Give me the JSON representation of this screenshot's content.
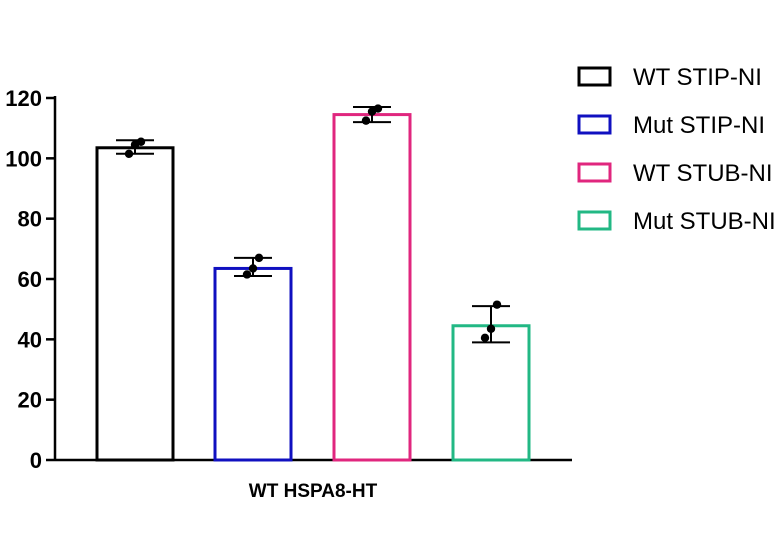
{
  "chart_data": {
    "type": "bar",
    "categories": [
      "WT HSPA8-HT"
    ],
    "ylim": [
      0,
      120
    ],
    "yticks": [
      0,
      20,
      40,
      60,
      80,
      100,
      120
    ],
    "xlabel": "WT HSPA8-HT",
    "ylabel": "",
    "grid": false,
    "legend_position": "right",
    "series": [
      {
        "name": "WT STIP-NI",
        "color": "#000000",
        "mean": 103.5,
        "err": [
          101.5,
          106
        ],
        "points": [
          101.5,
          105.5,
          104.5
        ]
      },
      {
        "name": "Mut STIP-NI",
        "color": "#1010c0",
        "mean": 63.5,
        "err": [
          61,
          67
        ],
        "points": [
          61.5,
          67,
          63.5
        ]
      },
      {
        "name": "WT STUB-NI",
        "color": "#e0267e",
        "mean": 114.5,
        "err": [
          112,
          117
        ],
        "points": [
          112.5,
          116.5,
          115.5
        ]
      },
      {
        "name": "Mut STUB-NI",
        "color": "#22b884",
        "mean": 44.5,
        "err": [
          39,
          51
        ],
        "points": [
          40.5,
          51.5,
          43.5
        ]
      }
    ]
  }
}
